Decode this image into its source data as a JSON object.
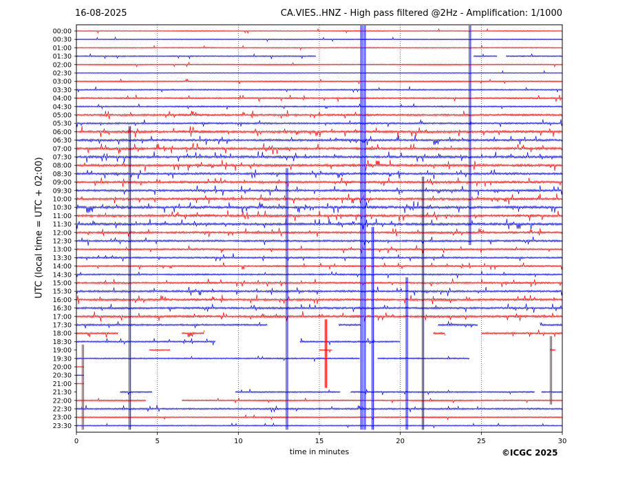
{
  "header": {
    "date": "16-08-2025",
    "title": "CA.VIES..HNZ - High pass filtered @2Hz - Amplification: 1/1000"
  },
  "footer": {
    "copyright": "©ICGC 2025"
  },
  "colors": {
    "red": "#ff0000",
    "blue": "#0000ff",
    "axis": "#000000"
  },
  "chart_data": {
    "type": "line",
    "title": "CA.VIES..HNZ - High pass filtered @2Hz - Amplification: 1/1000",
    "xlabel": "time in minutes",
    "ylabel": "UTC (local time = UTC + 02:00)",
    "xlim": [
      0,
      30
    ],
    "xticks": [
      0,
      5,
      10,
      15,
      20,
      25,
      30
    ],
    "vertical_gridlines": [
      5,
      10,
      15,
      20,
      25
    ],
    "rows": [
      "00:00",
      "00:30",
      "01:00",
      "01:30",
      "02:00",
      "02:30",
      "03:00",
      "03:30",
      "04:00",
      "04:30",
      "05:00",
      "05:30",
      "06:00",
      "06:30",
      "07:00",
      "07:30",
      "08:00",
      "08:30",
      "09:00",
      "09:30",
      "10:00",
      "10:30",
      "11:00",
      "11:30",
      "12:00",
      "12:30",
      "13:00",
      "13:30",
      "14:00",
      "14:30",
      "15:00",
      "15:30",
      "16:00",
      "16:30",
      "17:00",
      "17:30",
      "18:00",
      "18:30",
      "19:00",
      "19:30",
      "20:00",
      "20:30",
      "21:00",
      "21:30",
      "22:00",
      "22:30",
      "23:00",
      "23:30"
    ],
    "row_colors": [
      "red",
      "blue",
      "red",
      "blue",
      "red",
      "blue",
      "red",
      "blue",
      "red",
      "blue",
      "red",
      "blue",
      "red",
      "blue",
      "red",
      "blue",
      "red",
      "blue",
      "red",
      "blue",
      "red",
      "blue",
      "red",
      "blue",
      "red",
      "blue",
      "red",
      "blue",
      "red",
      "blue",
      "red",
      "blue",
      "red",
      "blue",
      "red",
      "blue",
      "red",
      "blue",
      "red",
      "blue",
      "red",
      "blue",
      "red",
      "blue",
      "red",
      "blue",
      "red",
      "blue"
    ],
    "row_activity": [
      0.1,
      0.1,
      0.1,
      0.2,
      0.1,
      0.1,
      0.2,
      0.3,
      0.4,
      0.3,
      0.6,
      0.5,
      0.8,
      0.7,
      0.8,
      0.8,
      0.8,
      0.7,
      0.7,
      0.7,
      0.8,
      0.9,
      0.8,
      0.8,
      0.6,
      0.6,
      0.5,
      0.5,
      0.4,
      0.4,
      0.5,
      0.6,
      0.7,
      0.6,
      0.7,
      0.5,
      0.5,
      0.4,
      0.2,
      0.3,
      0.0,
      0.0,
      0.0,
      0.3,
      0.2,
      0.4,
      0.2,
      0.2
    ],
    "gaps": [
      {
        "row": "01:30",
        "from": 14.8,
        "to": 24.5
      },
      {
        "row": "01:30",
        "from": 26.0,
        "to": 26.5
      },
      {
        "row": "17:30",
        "from": 11.8,
        "to": 16.2
      },
      {
        "row": "17:30",
        "from": 17.6,
        "to": 22.3
      },
      {
        "row": "17:30",
        "from": 24.8,
        "to": 28.6
      },
      {
        "row": "18:00",
        "from": 2.6,
        "to": 6.5
      },
      {
        "row": "18:00",
        "from": 7.9,
        "to": 22.0
      },
      {
        "row": "18:00",
        "from": 22.8,
        "to": 25.0
      },
      {
        "row": "18:30",
        "from": 8.6,
        "to": 13.8
      },
      {
        "row": "18:30",
        "from": 20.0,
        "to": 30.0
      },
      {
        "row": "19:00",
        "from": 0.0,
        "to": 4.5
      },
      {
        "row": "19:00",
        "from": 5.8,
        "to": 15.0
      },
      {
        "row": "19:00",
        "from": 15.8,
        "to": 29.2
      },
      {
        "row": "19:00",
        "from": 29.6,
        "to": 30.0
      },
      {
        "row": "19:30",
        "from": 17.5,
        "to": 18.6
      },
      {
        "row": "19:30",
        "from": 24.3,
        "to": 30.0
      },
      {
        "row": "20:00",
        "from": 0.5,
        "to": 30.0
      },
      {
        "row": "20:30",
        "from": 0.5,
        "to": 30.0
      },
      {
        "row": "21:00",
        "from": 0.5,
        "to": 30.0
      },
      {
        "row": "21:30",
        "from": 0.0,
        "to": 2.7
      },
      {
        "row": "21:30",
        "from": 4.7,
        "to": 9.8
      },
      {
        "row": "21:30",
        "from": 16.3,
        "to": 16.9
      },
      {
        "row": "21:30",
        "from": 28.3,
        "to": 28.7
      },
      {
        "row": "22:00",
        "from": 4.3,
        "to": 6.5
      }
    ],
    "spikes": [
      {
        "minute": 0.4,
        "from_row": "19:00",
        "to_row": "23:30",
        "color": "red"
      },
      {
        "minute": 3.3,
        "from_row": "06:00",
        "to_row": "23:30",
        "color": "blue"
      },
      {
        "minute": 13.0,
        "from_row": "08:30",
        "to_row": "23:30",
        "color": "blue"
      },
      {
        "minute": 15.4,
        "from_row": "17:30",
        "to_row": "21:00",
        "color": "red"
      },
      {
        "minute": 17.6,
        "from_row": "00:00",
        "to_row": "23:30",
        "color": "blue"
      },
      {
        "minute": 17.8,
        "from_row": "00:00",
        "to_row": "23:30",
        "color": "blue"
      },
      {
        "minute": 18.3,
        "from_row": "12:00",
        "to_row": "23:30",
        "color": "blue"
      },
      {
        "minute": 20.4,
        "from_row": "15:00",
        "to_row": "23:30",
        "color": "blue"
      },
      {
        "minute": 21.4,
        "from_row": "09:00",
        "to_row": "23:30",
        "color": "blue"
      },
      {
        "minute": 24.3,
        "from_row": "00:00",
        "to_row": "12:30",
        "color": "blue"
      },
      {
        "minute": 29.3,
        "from_row": "18:30",
        "to_row": "22:00",
        "color": "red"
      }
    ]
  }
}
